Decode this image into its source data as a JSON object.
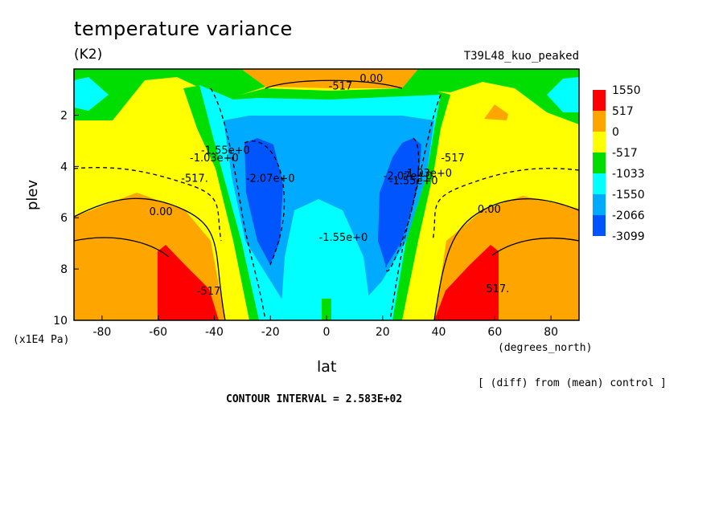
{
  "header": {
    "title": "temperature variance",
    "units": "(K2)",
    "run_name": "T39L48_kuo_peaked"
  },
  "axes": {
    "xlabel": "lat",
    "ylabel": "plev",
    "x_units": "(degrees_north)",
    "y_units": "(x1E4 Pa)"
  },
  "notes": {
    "diff": "[ (diff) from (mean) control ]",
    "contour_interval": "CONTOUR INTERVAL = 2.583E+02"
  },
  "chart_data": {
    "type": "heatmap",
    "title": "temperature variance",
    "xlabel": "lat",
    "ylabel": "plev",
    "xlim": [
      -90,
      90
    ],
    "ylim": [
      10,
      0.2
    ],
    "x_ticks": [
      -80,
      -60,
      -40,
      -20,
      0,
      20,
      40,
      60,
      80
    ],
    "x_tick_labels": [
      "-80",
      "-60",
      "-40",
      "-20",
      "0",
      "20",
      "40",
      "60",
      "80"
    ],
    "y_ticks": [
      2,
      4,
      6,
      8,
      10
    ],
    "y_tick_labels": [
      "2",
      "4",
      "6",
      "8",
      "10"
    ],
    "levels": [
      {
        "label": "1550",
        "color": "#ff0000"
      },
      {
        "label": "517",
        "color": "#ffa500"
      },
      {
        "label": "0",
        "color": "#ffff00"
      },
      {
        "label": "-517",
        "color": "#00dd00"
      },
      {
        "label": "-1033",
        "color": "#00ffff"
      },
      {
        "label": "-1550",
        "color": "#00aaff"
      },
      {
        "label": "-2066",
        "color": "#0055ff"
      },
      {
        "label": "-3099",
        "color": ""
      }
    ],
    "contour_labels": [
      {
        "text": "0.00",
        "lat": 16,
        "plev": 0.7
      },
      {
        "text": "-517",
        "lat": 5,
        "plev": 1.0
      },
      {
        "text": "-1.55e+0",
        "lat": -36,
        "plev": 3.5
      },
      {
        "text": "-1.03e+0",
        "lat": -40,
        "plev": 3.8
      },
      {
        "text": "-2.07e+0",
        "lat": -20,
        "plev": 4.6
      },
      {
        "text": "-517.",
        "lat": -47,
        "plev": 4.6
      },
      {
        "text": "0.00",
        "lat": -59,
        "plev": 5.9
      },
      {
        "text": "-1.55e+0",
        "lat": 6,
        "plev": 6.9
      },
      {
        "text": "-2.07e+0",
        "lat": 29,
        "plev": 4.5
      },
      {
        "text": "-1.55e+0",
        "lat": 31,
        "plev": 4.7
      },
      {
        "text": "-1.03e+0",
        "lat": 36,
        "plev": 4.4
      },
      {
        "text": "-517",
        "lat": 45,
        "plev": 3.8
      },
      {
        "text": "0.00",
        "lat": 58,
        "plev": 5.8
      },
      {
        "text": "-517",
        "lat": -42,
        "plev": 9.0
      },
      {
        "text": "517.",
        "lat": 61,
        "plev": 8.9
      }
    ]
  }
}
